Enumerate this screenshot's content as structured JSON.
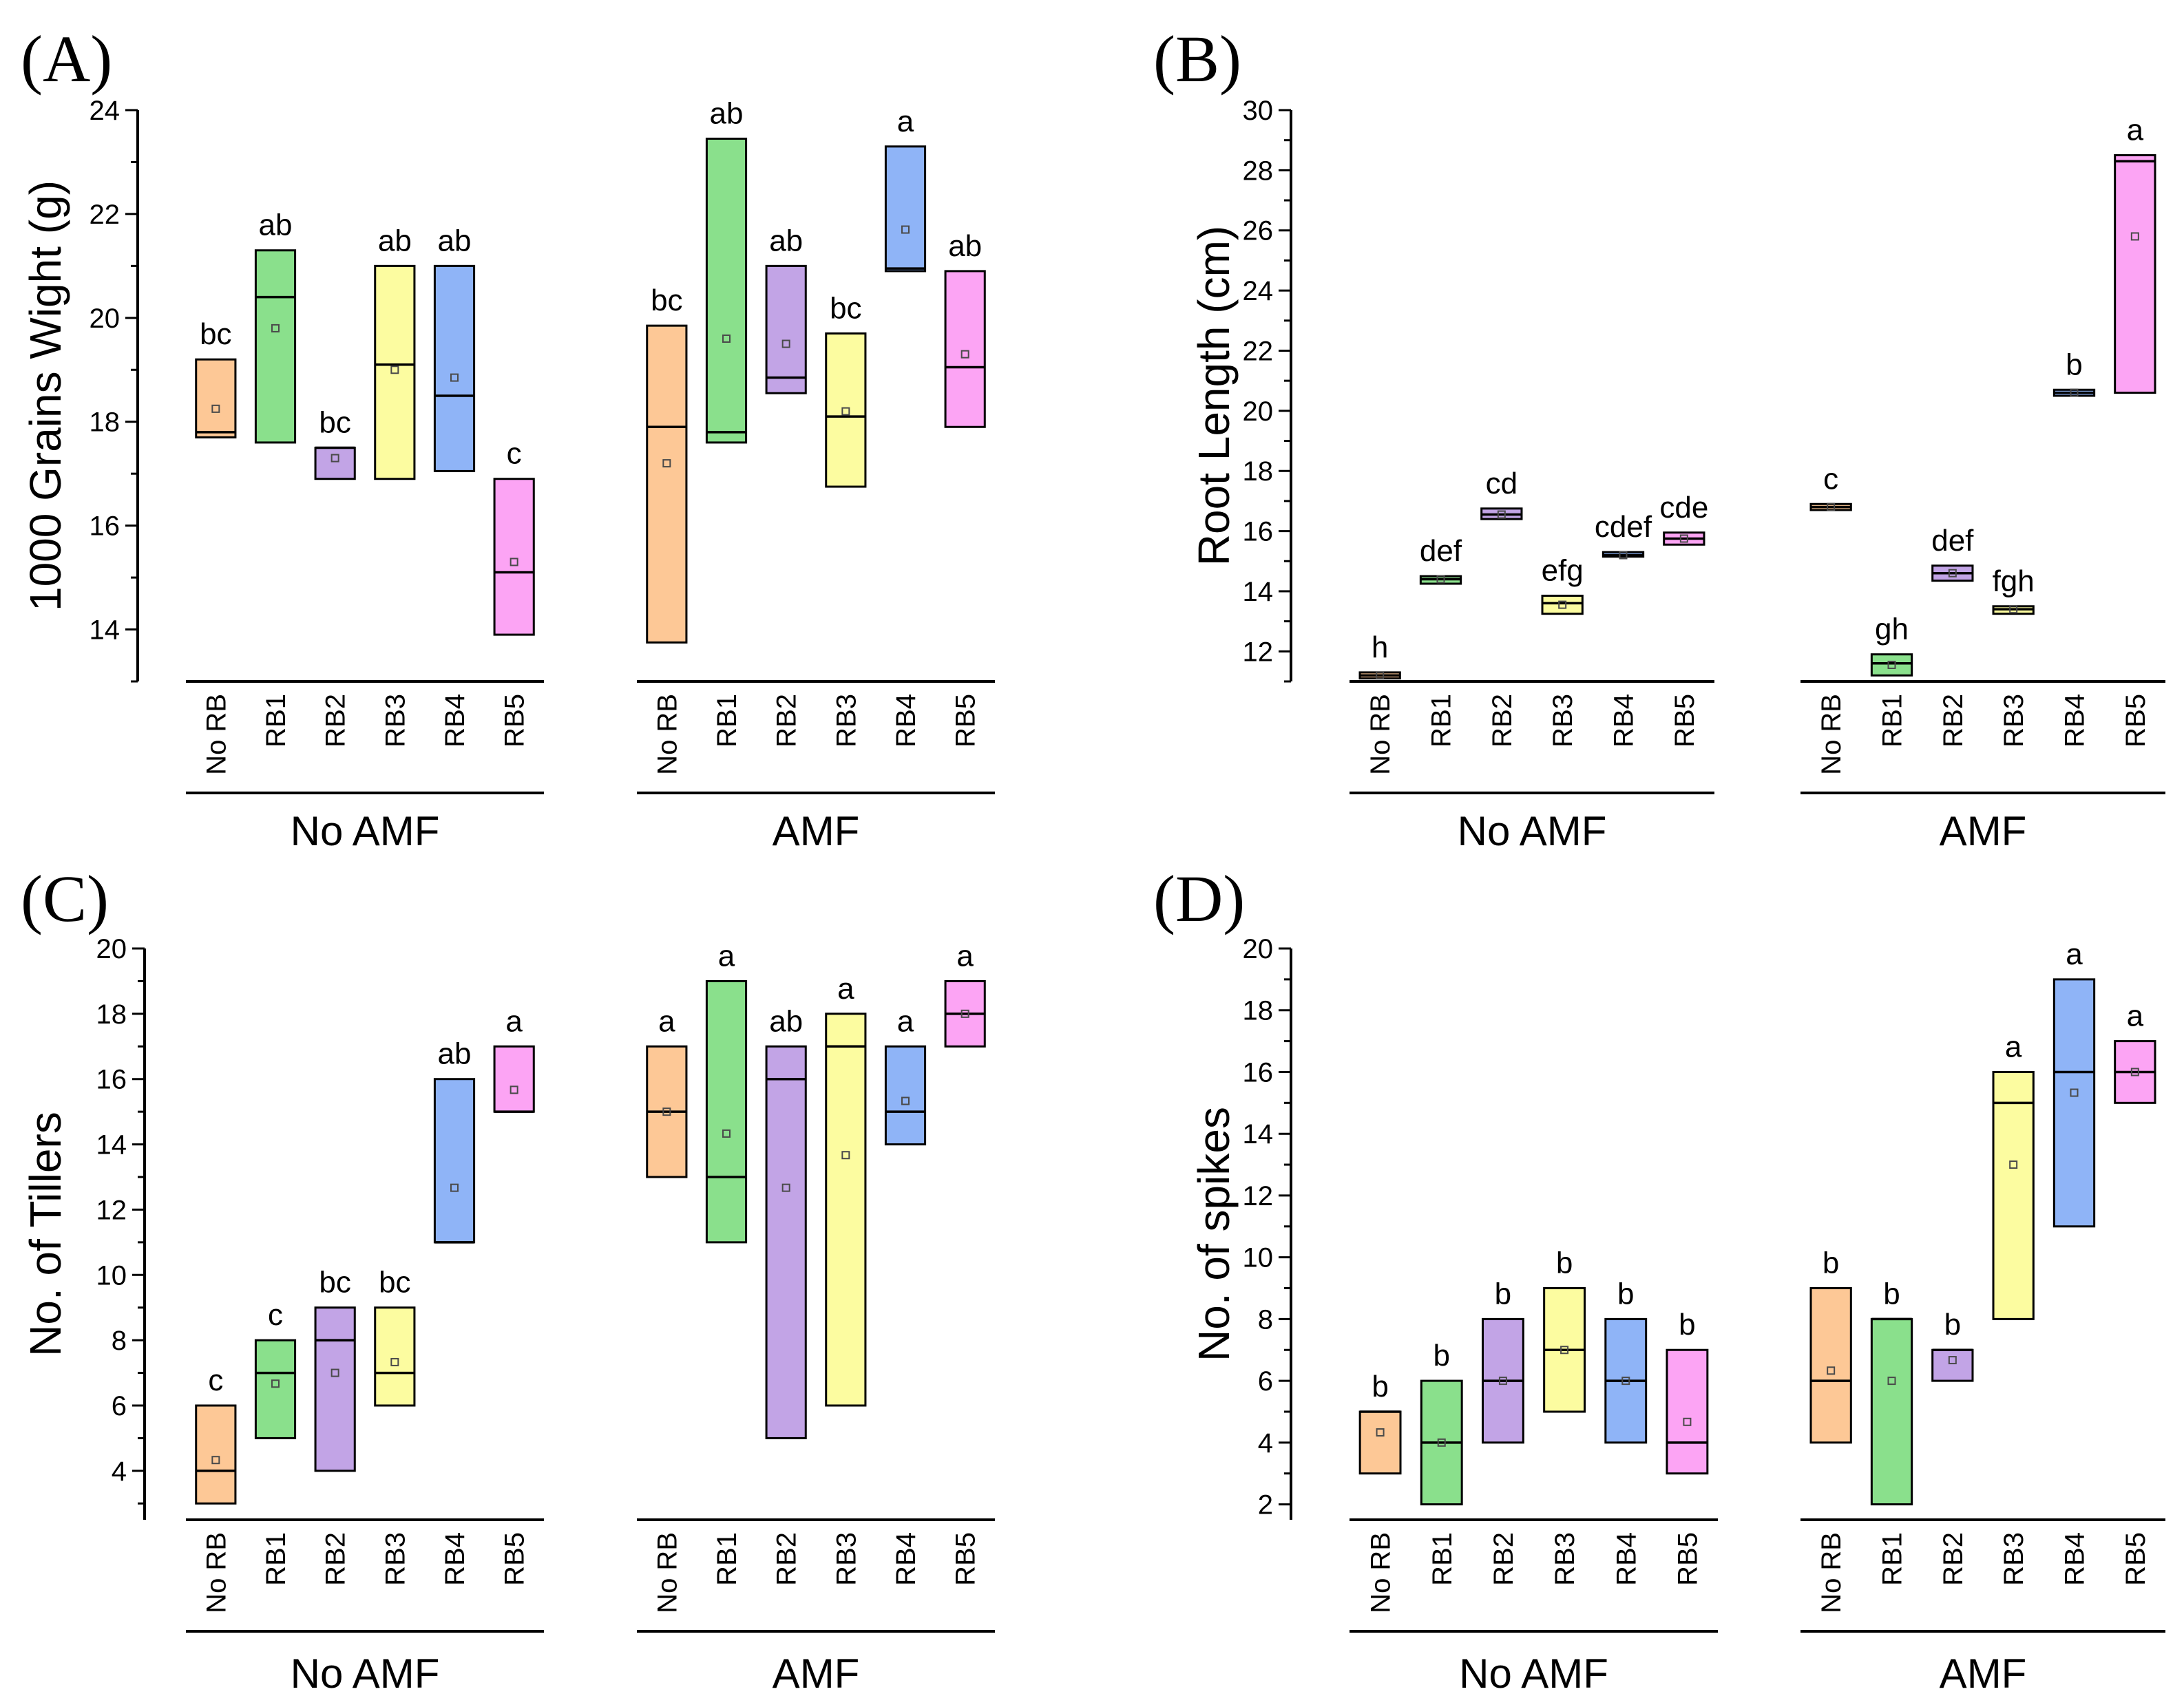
{
  "figure": {
    "group_labels": [
      "No AMF",
      "AMF"
    ]
  },
  "colors": {
    "No RB": "#fdc896",
    "RB1": "#8ae08c",
    "RB2": "#c2a4e6",
    "RB3": "#fcfca0",
    "RB4": "#8fb4f7",
    "RB5": "#fca4f4"
  },
  "chart_data": [
    {
      "type": "box",
      "panel": "(A)",
      "ylabel": "1000 Grains Wight (g)",
      "ylim": [
        13,
        24
      ],
      "yticks": [
        14,
        16,
        18,
        20,
        22,
        24
      ],
      "categories": [
        "No RB",
        "RB1",
        "RB2",
        "RB3",
        "RB4",
        "RB5"
      ],
      "groups": [
        {
          "name": "No AMF",
          "boxes": [
            {
              "category": "No RB",
              "q1": 17.7,
              "q3": 19.2,
              "median": 17.8,
              "mean": 18.25,
              "label": "bc"
            },
            {
              "category": "RB1",
              "q1": 17.6,
              "q3": 21.3,
              "median": 20.4,
              "mean": 19.8,
              "label": "ab"
            },
            {
              "category": "RB2",
              "q1": 16.9,
              "q3": 17.5,
              "median": 17.5,
              "mean": 17.3,
              "label": "bc"
            },
            {
              "category": "RB3",
              "q1": 16.9,
              "q3": 21.0,
              "median": 19.1,
              "mean": 19.0,
              "label": "ab"
            },
            {
              "category": "RB4",
              "q1": 17.05,
              "q3": 21.0,
              "median": 18.5,
              "mean": 18.85,
              "label": "ab"
            },
            {
              "category": "RB5",
              "q1": 13.9,
              "q3": 16.9,
              "median": 15.1,
              "mean": 15.3,
              "label": "c"
            }
          ]
        },
        {
          "name": "AMF",
          "boxes": [
            {
              "category": "No RB",
              "q1": 13.75,
              "q3": 19.85,
              "median": 17.9,
              "mean": 17.2,
              "label": "bc"
            },
            {
              "category": "RB1",
              "q1": 17.6,
              "q3": 23.45,
              "median": 17.8,
              "mean": 19.6,
              "label": "ab"
            },
            {
              "category": "RB2",
              "q1": 18.55,
              "q3": 21.0,
              "median": 18.85,
              "mean": 19.5,
              "label": "ab"
            },
            {
              "category": "RB3",
              "q1": 16.75,
              "q3": 19.7,
              "median": 18.1,
              "mean": 18.2,
              "label": "bc"
            },
            {
              "category": "RB4",
              "q1": 20.9,
              "q3": 23.3,
              "median": 20.95,
              "mean": 21.7,
              "label": "a"
            },
            {
              "category": "RB5",
              "q1": 17.9,
              "q3": 20.9,
              "median": 19.05,
              "mean": 19.3,
              "label": "ab"
            }
          ]
        }
      ]
    },
    {
      "type": "box",
      "panel": "(B)",
      "ylabel": "Root Length (cm)",
      "ylim": [
        11,
        30
      ],
      "yticks": [
        12,
        14,
        16,
        18,
        20,
        22,
        24,
        26,
        28,
        30
      ],
      "categories": [
        "No RB",
        "RB1",
        "RB2",
        "RB3",
        "RB4",
        "RB5"
      ],
      "groups": [
        {
          "name": "No AMF",
          "boxes": [
            {
              "category": "No RB",
              "q1": 11.1,
              "q3": 11.3,
              "median": 11.2,
              "mean": 11.2,
              "label": "h"
            },
            {
              "category": "RB1",
              "q1": 14.25,
              "q3": 14.5,
              "median": 14.4,
              "mean": 14.4,
              "label": "def"
            },
            {
              "category": "RB2",
              "q1": 16.4,
              "q3": 16.75,
              "median": 16.55,
              "mean": 16.55,
              "label": "cd"
            },
            {
              "category": "RB3",
              "q1": 13.25,
              "q3": 13.85,
              "median": 13.6,
              "mean": 13.55,
              "label": "efg"
            },
            {
              "category": "RB4",
              "q1": 15.15,
              "q3": 15.3,
              "median": 15.2,
              "mean": 15.2,
              "label": "cdef"
            },
            {
              "category": "RB5",
              "q1": 15.55,
              "q3": 15.95,
              "median": 15.75,
              "mean": 15.75,
              "label": "cde"
            }
          ]
        },
        {
          "name": "AMF",
          "boxes": [
            {
              "category": "No RB",
              "q1": 16.7,
              "q3": 16.9,
              "median": 16.8,
              "mean": 16.8,
              "label": "c"
            },
            {
              "category": "RB1",
              "q1": 11.2,
              "q3": 11.9,
              "median": 11.6,
              "mean": 11.55,
              "label": "gh"
            },
            {
              "category": "RB2",
              "q1": 14.35,
              "q3": 14.85,
              "median": 14.6,
              "mean": 14.6,
              "label": "def"
            },
            {
              "category": "RB3",
              "q1": 13.25,
              "q3": 13.5,
              "median": 13.4,
              "mean": 13.4,
              "label": "fgh"
            },
            {
              "category": "RB4",
              "q1": 20.5,
              "q3": 20.7,
              "median": 20.6,
              "mean": 20.6,
              "label": "b"
            },
            {
              "category": "RB5",
              "q1": 20.6,
              "q3": 28.5,
              "median": 28.3,
              "mean": 25.8,
              "label": "a"
            }
          ]
        }
      ]
    },
    {
      "type": "box",
      "panel": "(C)",
      "ylabel": "No. of Tillers",
      "ylim": [
        2.5,
        20
      ],
      "yticks": [
        4,
        6,
        8,
        10,
        12,
        14,
        16,
        18,
        20
      ],
      "categories": [
        "No RB",
        "RB1",
        "RB2",
        "RB3",
        "RB4",
        "RB5"
      ],
      "groups": [
        {
          "name": "No AMF",
          "boxes": [
            {
              "category": "No RB",
              "q1": 3,
              "q3": 6,
              "median": 4,
              "mean": 4.33,
              "label": "c"
            },
            {
              "category": "RB1",
              "q1": 5,
              "q3": 8,
              "median": 7,
              "mean": 6.67,
              "label": "c"
            },
            {
              "category": "RB2",
              "q1": 4,
              "q3": 9,
              "median": 8,
              "mean": 7,
              "label": "bc"
            },
            {
              "category": "RB3",
              "q1": 6,
              "q3": 9,
              "median": 7,
              "mean": 7.33,
              "label": "bc"
            },
            {
              "category": "RB4",
              "q1": 11,
              "q3": 16,
              "median": 11,
              "mean": 12.67,
              "label": "ab"
            },
            {
              "category": "RB5",
              "q1": 15,
              "q3": 17,
              "median": 15,
              "mean": 15.67,
              "label": "a"
            }
          ]
        },
        {
          "name": "AMF",
          "boxes": [
            {
              "category": "No RB",
              "q1": 13,
              "q3": 17,
              "median": 15,
              "mean": 15,
              "label": "a"
            },
            {
              "category": "RB1",
              "q1": 11,
              "q3": 19,
              "median": 13,
              "mean": 14.33,
              "label": "a"
            },
            {
              "category": "RB2",
              "q1": 5,
              "q3": 17,
              "median": 16,
              "mean": 12.67,
              "label": "ab"
            },
            {
              "category": "RB3",
              "q1": 6,
              "q3": 18,
              "median": 17,
              "mean": 13.67,
              "label": "a"
            },
            {
              "category": "RB4",
              "q1": 14,
              "q3": 17,
              "median": 15,
              "mean": 15.33,
              "label": "a"
            },
            {
              "category": "RB5",
              "q1": 17,
              "q3": 19,
              "median": 18,
              "mean": 18,
              "label": "a"
            }
          ]
        }
      ]
    },
    {
      "type": "box",
      "panel": "(D)",
      "ylabel": "No. of spikes",
      "ylim": [
        1.5,
        20
      ],
      "yticks": [
        2,
        4,
        6,
        8,
        10,
        12,
        14,
        16,
        18,
        20
      ],
      "categories": [
        "No RB",
        "RB1",
        "RB2",
        "RB3",
        "RB4",
        "RB5"
      ],
      "groups": [
        {
          "name": "No AMF",
          "boxes": [
            {
              "category": "No RB",
              "q1": 3,
              "q3": 5,
              "median": 5,
              "mean": 4.33,
              "label": "b"
            },
            {
              "category": "RB1",
              "q1": 2,
              "q3": 6,
              "median": 4,
              "mean": 4,
              "label": "b"
            },
            {
              "category": "RB2",
              "q1": 4,
              "q3": 8,
              "median": 6,
              "mean": 6,
              "label": "b"
            },
            {
              "category": "RB3",
              "q1": 5,
              "q3": 9,
              "median": 7,
              "mean": 7,
              "label": "b"
            },
            {
              "category": "RB4",
              "q1": 4,
              "q3": 8,
              "median": 6,
              "mean": 6,
              "label": "b"
            },
            {
              "category": "RB5",
              "q1": 3,
              "q3": 7,
              "median": 4,
              "mean": 4.67,
              "label": "b"
            }
          ]
        },
        {
          "name": "AMF",
          "boxes": [
            {
              "category": "No RB",
              "q1": 4,
              "q3": 9,
              "median": 6,
              "mean": 6.33,
              "label": "b"
            },
            {
              "category": "RB1",
              "q1": 2,
              "q3": 8,
              "median": 8,
              "mean": 6,
              "label": "b"
            },
            {
              "category": "RB2",
              "q1": 6,
              "q3": 7,
              "median": 7,
              "mean": 6.67,
              "label": "b"
            },
            {
              "category": "RB3",
              "q1": 8,
              "q3": 16,
              "median": 15,
              "mean": 13,
              "label": "a"
            },
            {
              "category": "RB4",
              "q1": 11,
              "q3": 19,
              "median": 16,
              "mean": 15.33,
              "label": "a"
            },
            {
              "category": "RB5",
              "q1": 15,
              "q3": 17,
              "median": 16,
              "mean": 16,
              "label": "a"
            }
          ]
        }
      ]
    }
  ]
}
